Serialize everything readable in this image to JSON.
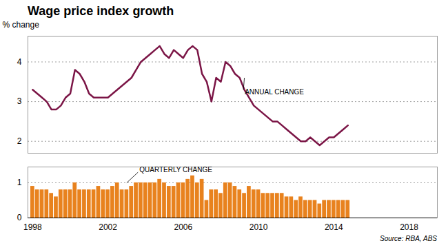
{
  "chart_data": [
    {
      "type": "line",
      "title": "Wage price index growth",
      "ylabel": "% change",
      "x": [
        1998,
        1998.25,
        1998.5,
        1998.75,
        1999,
        1999.25,
        1999.5,
        1999.75,
        2000,
        2000.25,
        2000.5,
        2000.75,
        2001,
        2001.25,
        2001.5,
        2001.75,
        2002,
        2002.25,
        2002.5,
        2002.75,
        2003,
        2003.25,
        2003.5,
        2003.75,
        2004,
        2004.25,
        2004.5,
        2004.75,
        2005,
        2005.25,
        2005.5,
        2005.75,
        2006,
        2006.25,
        2006.5,
        2006.75,
        2007,
        2007.25,
        2007.5,
        2007.75,
        2008,
        2008.25,
        2008.5,
        2008.75,
        2009,
        2009.25,
        2009.5,
        2009.75,
        2010,
        2010.25,
        2010.5,
        2010.75,
        2011,
        2011.25,
        2011.5,
        2011.75,
        2012,
        2012.25,
        2012.5,
        2012.75,
        2013,
        2013.25,
        2013.5,
        2013.75,
        2014,
        2014.25,
        2014.5,
        2014.75
      ],
      "values": [
        3.3,
        3.2,
        3.1,
        3.0,
        2.8,
        2.8,
        2.9,
        3.1,
        3.2,
        3.8,
        3.7,
        3.5,
        3.2,
        3.1,
        3.1,
        3.1,
        3.1,
        3.2,
        3.3,
        3.4,
        3.5,
        3.6,
        3.8,
        4.0,
        4.1,
        4.2,
        4.3,
        4.4,
        4.2,
        4.1,
        4.3,
        4.2,
        4.1,
        4.3,
        4.4,
        4.3,
        3.7,
        3.5,
        3.0,
        3.6,
        3.5,
        4.0,
        3.9,
        3.7,
        3.6,
        3.3,
        3.1,
        2.9,
        2.8,
        2.7,
        2.6,
        2.5,
        2.5,
        2.4,
        2.3,
        2.2,
        2.1,
        2.0,
        2.0,
        2.1,
        2.0,
        1.9,
        2.0,
        2.1,
        2.1,
        2.2,
        2.3,
        2.4
      ],
      "color": "#7b1546",
      "xlim": [
        1997.75,
        2019.5
      ],
      "ylim": [
        1.7,
        4.65
      ],
      "yticks": [
        2,
        3,
        4
      ],
      "grid": true,
      "tick_labels": "y",
      "annotations": [
        {
          "text": "ANNUAL CHANGE",
          "x": 2009.2,
          "y": 3.3,
          "point_x": 2009.25,
          "point_y": 3.6
        }
      ]
    },
    {
      "type": "bar",
      "x": [
        1998,
        1998.25,
        1998.5,
        1998.75,
        1999,
        1999.25,
        1999.5,
        1999.75,
        2000,
        2000.25,
        2000.5,
        2000.75,
        2001,
        2001.25,
        2001.5,
        2001.75,
        2002,
        2002.25,
        2002.5,
        2002.75,
        2003,
        2003.25,
        2003.5,
        2003.75,
        2004,
        2004.25,
        2004.5,
        2004.75,
        2005,
        2005.25,
        2005.5,
        2005.75,
        2006,
        2006.25,
        2006.5,
        2006.75,
        2007,
        2007.25,
        2007.5,
        2007.75,
        2008,
        2008.25,
        2008.5,
        2008.75,
        2009,
        2009.25,
        2009.5,
        2009.75,
        2010,
        2010.25,
        2010.5,
        2010.75,
        2011,
        2011.25,
        2011.5,
        2011.75,
        2012,
        2012.25,
        2012.5,
        2012.75,
        2013,
        2013.25,
        2013.5,
        2013.75,
        2014,
        2014.25,
        2014.5,
        2014.75
      ],
      "values": [
        0.9,
        0.8,
        0.8,
        0.8,
        0.7,
        0.6,
        0.8,
        0.8,
        0.8,
        1.0,
        0.8,
        0.8,
        0.8,
        0.8,
        0.9,
        0.8,
        0.8,
        0.9,
        1.0,
        0.8,
        0.8,
        0.9,
        1.0,
        1.0,
        1.0,
        1.0,
        1.0,
        1.1,
        1.0,
        0.9,
        0.9,
        1.0,
        1.0,
        1.1,
        1.2,
        1.0,
        1.1,
        0.5,
        0.8,
        0.8,
        0.7,
        1.0,
        1.0,
        0.9,
        0.8,
        0.7,
        0.9,
        0.8,
        0.8,
        0.7,
        0.7,
        0.7,
        0.7,
        0.7,
        0.6,
        0.6,
        0.5,
        0.6,
        0.5,
        0.5,
        0.5,
        0.4,
        0.5,
        0.5,
        0.5,
        0.5,
        0.5,
        0.5
      ],
      "color": "#e8821e",
      "xlim": [
        1997.75,
        2019.5
      ],
      "xticks": [
        1998,
        2002,
        2006,
        2010,
        2014,
        2018
      ],
      "ylim": [
        0,
        1.45
      ],
      "yticks": [
        0,
        1
      ],
      "grid": true,
      "annotations": [
        {
          "text": "QUARTERLY CHANGE",
          "x": 2003.6,
          "y": 1.3,
          "point_x": 2003.0,
          "point_y": 1.0
        }
      ],
      "source": "Source: RBA, ABS"
    }
  ]
}
